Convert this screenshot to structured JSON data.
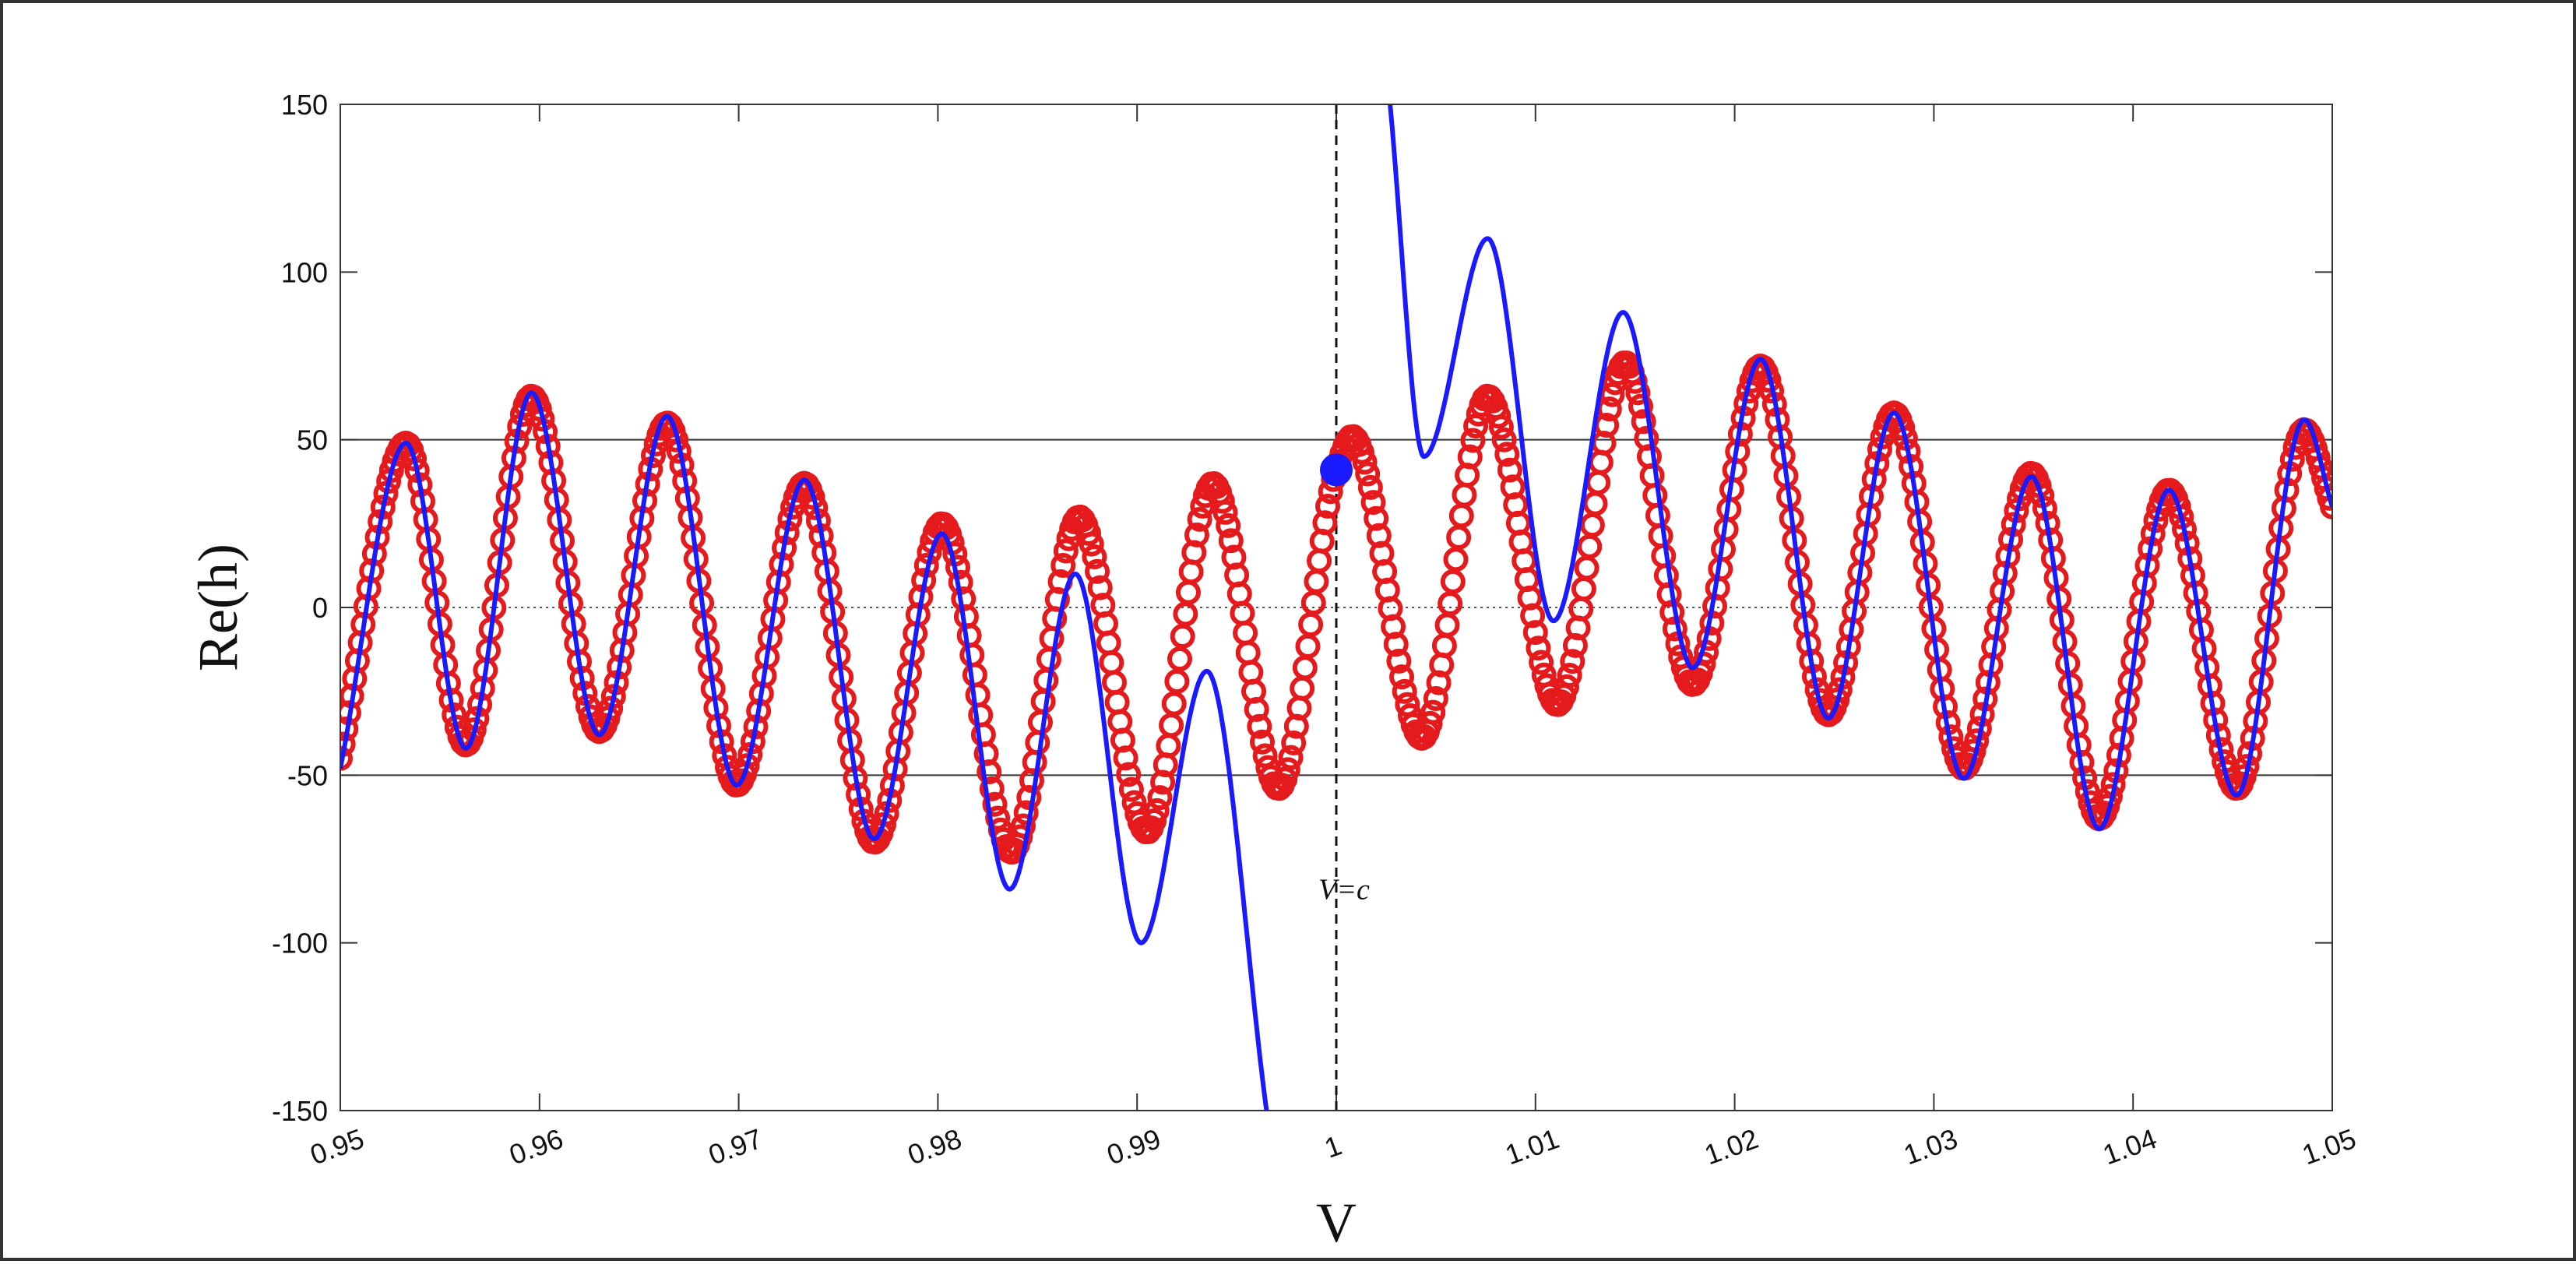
{
  "chart_data": {
    "type": "line",
    "title": "",
    "xlabel": "V",
    "ylabel": "Re(h)",
    "xlim": [
      0.95,
      1.05
    ],
    "ylim": [
      -150,
      150
    ],
    "x_ticks": [
      "0.95",
      "0.96",
      "0.97",
      "0.98",
      "0.99",
      "1",
      "1.01",
      "1.02",
      "1.03",
      "1.04",
      "1.05"
    ],
    "x_tick_values": [
      0.95,
      0.96,
      0.97,
      0.98,
      0.99,
      1.0,
      1.01,
      1.02,
      1.03,
      1.04,
      1.05
    ],
    "y_ticks": [
      "-150",
      "-100",
      "-50",
      "0",
      "50",
      "100",
      "150"
    ],
    "y_tick_values": [
      -150,
      -100,
      -50,
      0,
      50,
      100,
      150
    ],
    "grid_lines_y": [
      -50,
      50
    ],
    "zero_line": 0,
    "vertical_line": {
      "x": 1.0,
      "label": "V=c"
    },
    "highlight_point": {
      "x": 1.0,
      "y": 41,
      "color": "#1a1aff"
    },
    "colors": {
      "markers": "#e41a1c",
      "curve": "#1a1aff"
    },
    "series": [
      {
        "style": "circle-markers",
        "x": [
          0.95,
          0.9533,
          0.9563,
          0.9596,
          0.963,
          0.9664,
          0.9699,
          0.9733,
          0.9768,
          0.9802,
          0.9837,
          0.9871,
          0.9905,
          0.9938,
          0.9971,
          1.0,
          1.0008,
          1.0043,
          1.0076,
          1.0111,
          1.0145,
          1.0179,
          1.0213,
          1.0247,
          1.028,
          1.0315,
          1.0349,
          1.0383,
          1.0418,
          1.0452,
          1.0486,
          1.05
        ],
        "y": [
          -45,
          49,
          -41,
          63,
          -37,
          55,
          -53,
          37,
          -70,
          25,
          -73,
          27,
          -67,
          37,
          -54,
          41,
          51,
          -39,
          63,
          -29,
          73,
          -23,
          72,
          -32,
          58,
          -48,
          40,
          -63,
          35,
          -54,
          53,
          30
        ]
      },
      {
        "style": "line",
        "segments": [
          {
            "x": [
              0.95,
              0.9533,
              0.9563,
              0.9596,
              0.963,
              0.9664,
              0.9699,
              0.9733,
              0.9768,
              0.9802,
              0.9836,
              0.9869,
              0.9902,
              0.9935,
              0.9965
            ],
            "y": [
              -48,
              49,
              -42,
              64,
              -38,
              57,
              -53,
              38,
              -69,
              22,
              -84,
              10,
              -100,
              -19,
              -150
            ]
          },
          {
            "x": [
              1.0027,
              1.0044,
              1.0076,
              1.0109,
              1.0144,
              1.0179,
              1.0213,
              1.0247,
              1.028,
              1.0315,
              1.0349,
              1.0383,
              1.0418,
              1.0452,
              1.0486,
              1.05
            ],
            "y": [
              150,
              45,
              110,
              -4,
              88,
              -18,
              74,
              -33,
              58,
              -51,
              39,
              -66,
              35,
              -56,
              56,
              30
            ]
          }
        ]
      }
    ]
  }
}
